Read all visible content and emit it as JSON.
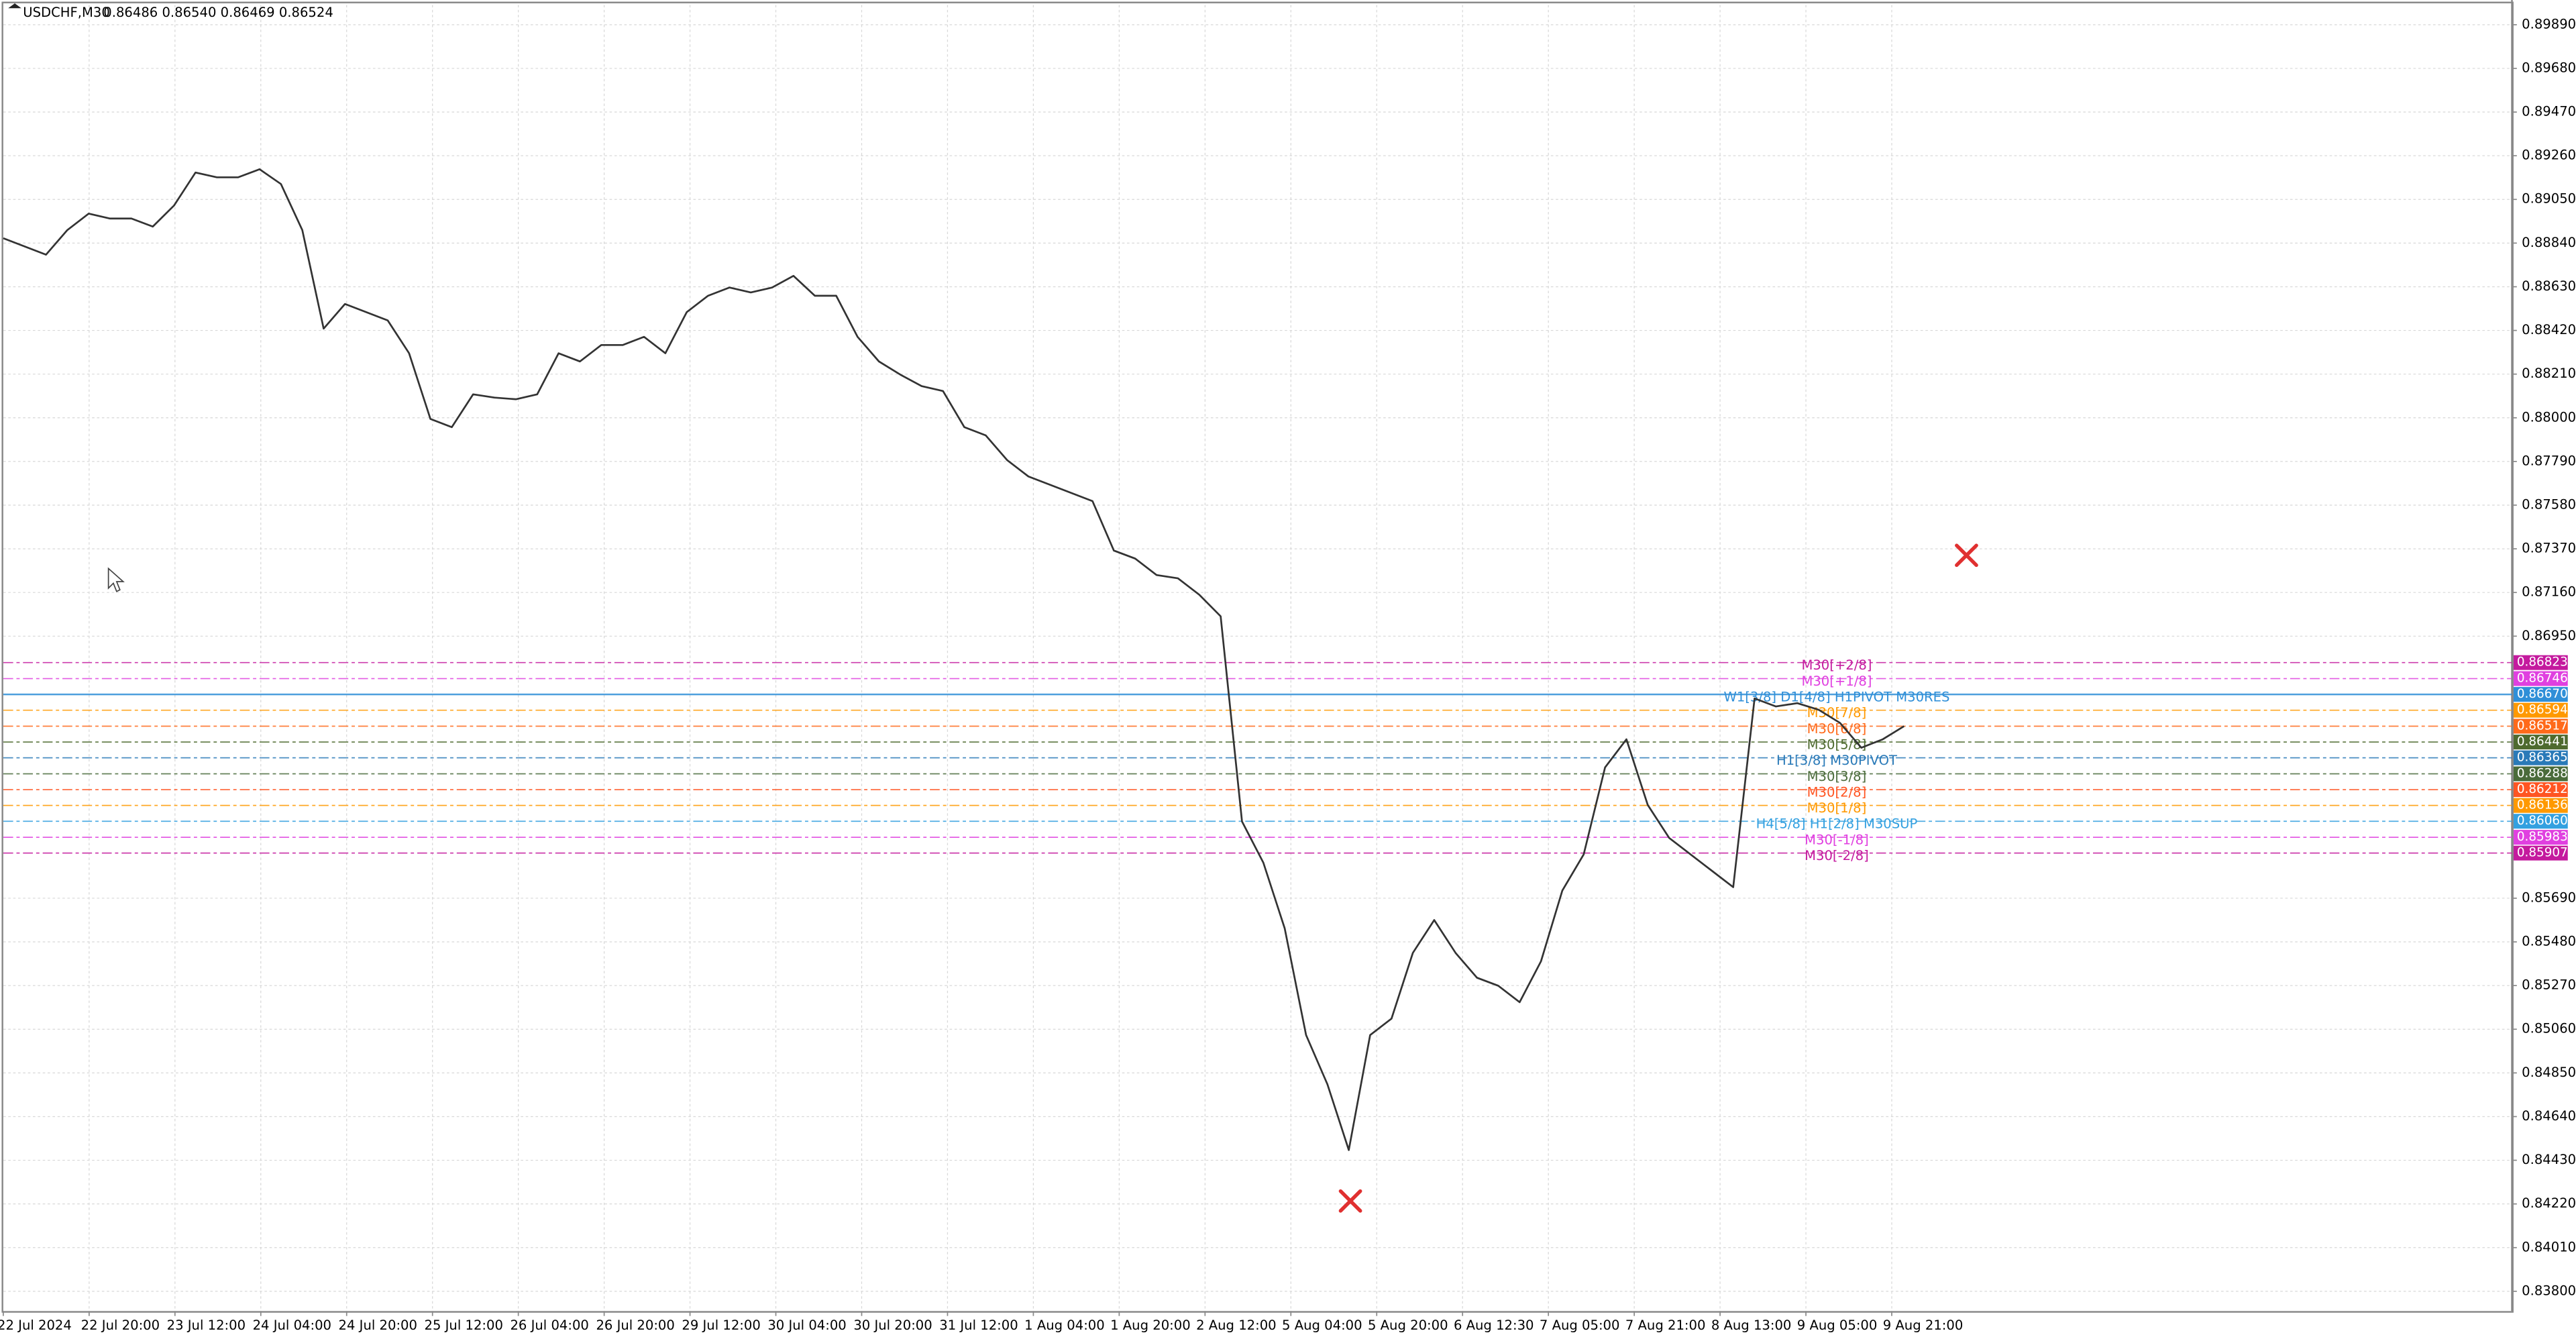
{
  "chart_data": {
    "type": "line",
    "title": "USDCHF,M30",
    "subtitle": "0.86486 0.86540 0.86469 0.86524",
    "x_tick_labels": [
      "22 Jul 2024",
      "22 Jul 20:00",
      "23 Jul 12:00",
      "24 Jul 04:00",
      "24 Jul 20:00",
      "25 Jul 12:00",
      "26 Jul 04:00",
      "26 Jul 20:00",
      "29 Jul 12:00",
      "30 Jul 04:00",
      "30 Jul 20:00",
      "31 Jul 12:00",
      "1 Aug 04:00",
      "1 Aug 20:00",
      "2 Aug 12:00",
      "5 Aug 04:00",
      "5 Aug 20:00",
      "6 Aug 12:30",
      "7 Aug 05:00",
      "7 Aug 21:00",
      "8 Aug 13:00",
      "9 Aug 05:00",
      "9 Aug 21:00"
    ],
    "series": [
      {
        "name": "USDCHF",
        "color": "#333333",
        "values": [
          0.88863,
          0.88824,
          0.88784,
          0.88903,
          0.88982,
          0.88958,
          0.88958,
          0.88919,
          0.89021,
          0.89179,
          0.89156,
          0.89156,
          0.89195,
          0.89124,
          0.88903,
          0.88429,
          0.88547,
          0.88508,
          0.88468,
          0.8831,
          0.87994,
          0.87955,
          0.88113,
          0.88097,
          0.88089,
          0.88113,
          0.8831,
          0.88271,
          0.8835,
          0.8835,
          0.88389,
          0.8831,
          0.88508,
          0.88587,
          0.88626,
          0.88603,
          0.88626,
          0.88682,
          0.88587,
          0.88587,
          0.88389,
          0.88271,
          0.88208,
          0.88152,
          0.88129,
          0.87955,
          0.87915,
          0.87797,
          0.87718,
          0.87678,
          0.87639,
          0.87599,
          0.87362,
          0.87323,
          0.87244,
          0.87228,
          0.87149,
          0.87046,
          0.86059,
          0.85861,
          0.85545,
          0.85032,
          0.84795,
          0.84479,
          0.85032,
          0.85111,
          0.85427,
          0.85585,
          0.85427,
          0.85308,
          0.85269,
          0.8519,
          0.85387,
          0.85727,
          0.85901,
          0.86319,
          0.86454,
          0.86138,
          0.8598,
          0.85901,
          0.85822,
          0.85743,
          0.86651,
          0.86612,
          0.86628,
          0.86596,
          0.86533,
          0.86414,
          0.86454,
          0.86517
        ]
      }
    ],
    "ylim": [
      0.83705,
      0.89985
    ],
    "yticks": [
      {
        "value": 0.8989,
        "label": "0.89890"
      },
      {
        "value": 0.8968,
        "label": "0.89680"
      },
      {
        "value": 0.8947,
        "label": "0.89470"
      },
      {
        "value": 0.8926,
        "label": "0.89260"
      },
      {
        "value": 0.8905,
        "label": "0.89050"
      },
      {
        "value": 0.8884,
        "label": "0.88840"
      },
      {
        "value": 0.8863,
        "label": "0.88630"
      },
      {
        "value": 0.8842,
        "label": "0.88420"
      },
      {
        "value": 0.8821,
        "label": "0.88210"
      },
      {
        "value": 0.88,
        "label": "0.88000"
      },
      {
        "value": 0.8779,
        "label": "0.87790"
      },
      {
        "value": 0.8758,
        "label": "0.87580"
      },
      {
        "value": 0.8737,
        "label": "0.87370"
      },
      {
        "value": 0.8716,
        "label": "0.87160"
      },
      {
        "value": 0.8695,
        "label": "0.86950"
      },
      {
        "value": 0.8569,
        "label": "0.85690"
      },
      {
        "value": 0.8548,
        "label": "0.85480"
      },
      {
        "value": 0.8527,
        "label": "0.85270"
      },
      {
        "value": 0.8506,
        "label": "0.85060"
      },
      {
        "value": 0.8485,
        "label": "0.84850"
      },
      {
        "value": 0.8464,
        "label": "0.84640"
      },
      {
        "value": 0.8443,
        "label": "0.84430"
      },
      {
        "value": 0.8422,
        "label": "0.84220"
      },
      {
        "value": 0.8401,
        "label": "0.84010"
      },
      {
        "value": 0.838,
        "label": "0.83800"
      }
    ],
    "grid": true,
    "levels": {
      "names": [
        "M30[+2/8]",
        "M30[+1/8]",
        "W1[3/8] D1[4/8] H1PIVOT M30RES",
        "M30[7/8]",
        "M30[6/8]",
        "M30[5/8]",
        "H1[3/8] M30PIVOT",
        "M30[3/8]",
        "M30[2/8]",
        "M30[1/8]",
        "H4[5/8] H1[2/8] M30SUP",
        "M30[-1/8]",
        "M30[-2/8]"
      ],
      "colors": [
        "#c41a9e",
        "#e040e0",
        "#2f8fd8",
        "#ff9900",
        "#ff6a1a",
        "#4e6a2e",
        "#2a7ab8",
        "#4a6b3a",
        "#ff5522",
        "#ff9900",
        "#33a0e0",
        "#e040e0",
        "#c41a9e"
      ],
      "values": [
        0.86823,
        0.86746,
        0.8667,
        0.86594,
        0.86517,
        0.86441,
        0.86365,
        0.86288,
        0.86212,
        0.86136,
        0.8606,
        0.85983,
        0.85907
      ],
      "value_labels": [
        "0.86823",
        "0.86746",
        "0.86670",
        "0.86594",
        "0.86517",
        "0.86441",
        "0.86365",
        "0.86288",
        "0.86212",
        "0.86136",
        "0.86060",
        "0.85983",
        "0.85907"
      ]
    }
  }
}
